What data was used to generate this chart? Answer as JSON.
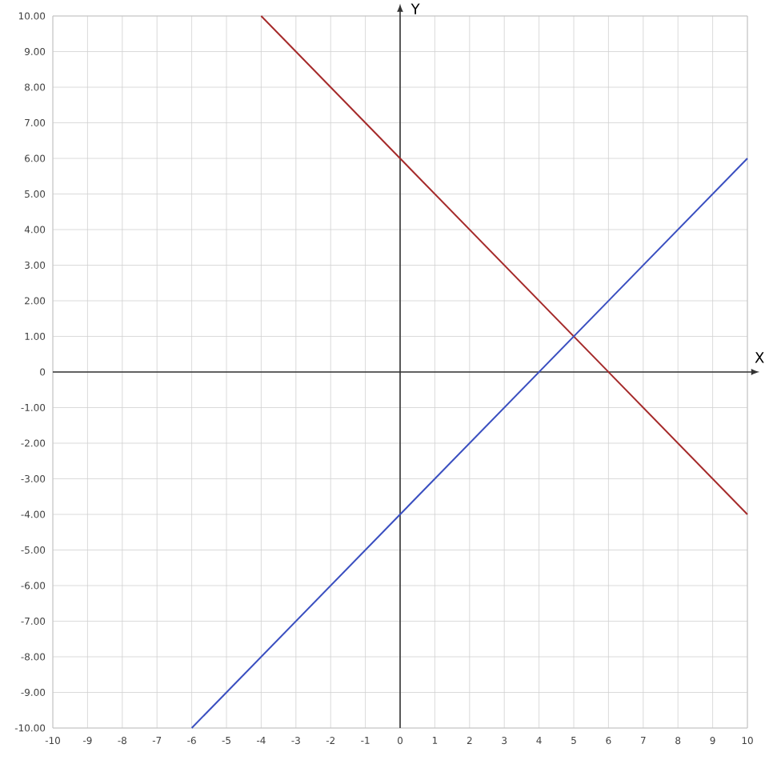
{
  "chart_data": {
    "type": "line",
    "xlabel": "X",
    "ylabel": "Y",
    "series": [
      {
        "color": "#a52a2a",
        "x": [
          -4,
          10
        ],
        "values": [
          10,
          -4
        ]
      },
      {
        "color": "#3a4fc0",
        "x": [
          -6,
          10
        ],
        "values": [
          -10,
          6
        ]
      }
    ],
    "xlim": [
      -10,
      10
    ],
    "ylim": [
      -10,
      10
    ],
    "xticks": [
      -10,
      -9,
      -8,
      -7,
      -6,
      -5,
      -4,
      -3,
      -2,
      -1,
      0,
      1,
      2,
      3,
      4,
      5,
      6,
      7,
      8,
      9,
      10
    ],
    "yticks": [
      {
        "value": -10,
        "label": "-10.00"
      },
      {
        "value": -9,
        "label": "-9.00"
      },
      {
        "value": -8,
        "label": "-8.00"
      },
      {
        "value": -7,
        "label": "-7.00"
      },
      {
        "value": -6,
        "label": "-6.00"
      },
      {
        "value": -5,
        "label": "-5.00"
      },
      {
        "value": -4,
        "label": "-4.00"
      },
      {
        "value": -3,
        "label": "-3.00"
      },
      {
        "value": -2,
        "label": "-2.00"
      },
      {
        "value": -1,
        "label": "-1.00"
      },
      {
        "value": 0,
        "label": "0"
      },
      {
        "value": 1,
        "label": "1.00"
      },
      {
        "value": 2,
        "label": "2.00"
      },
      {
        "value": 3,
        "label": "3.00"
      },
      {
        "value": 4,
        "label": "4.00"
      },
      {
        "value": 5,
        "label": "5.00"
      },
      {
        "value": 6,
        "label": "6.00"
      },
      {
        "value": 7,
        "label": "7.00"
      },
      {
        "value": 8,
        "label": "8.00"
      },
      {
        "value": 9,
        "label": "9.00"
      },
      {
        "value": 10,
        "label": "10.00"
      }
    ],
    "grid": true,
    "marker": "none",
    "line_style": "solid"
  }
}
